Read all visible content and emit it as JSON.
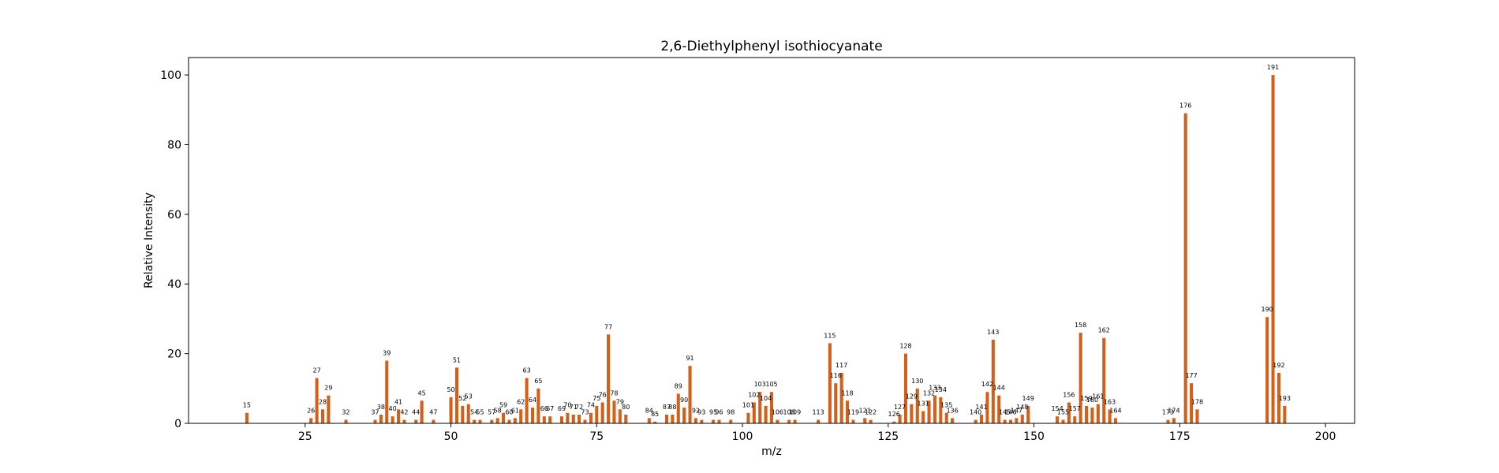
{
  "chart_data": {
    "type": "bar",
    "title": "2,6-Diethylphenyl isothiocyanate",
    "xlabel": "m/z",
    "ylabel": "Relative Intensity",
    "xlim": [
      5,
      205
    ],
    "ylim": [
      0,
      105
    ],
    "xticks": [
      25,
      50,
      75,
      100,
      125,
      150,
      175,
      200
    ],
    "yticks": [
      0,
      20,
      40,
      60,
      80,
      100
    ],
    "bar_color": "#d2601a",
    "grid": false,
    "x": [
      15,
      26,
      27,
      28,
      29,
      32,
      37,
      38,
      39,
      40,
      41,
      42,
      44,
      45,
      47,
      50,
      51,
      52,
      53,
      54,
      55,
      57,
      58,
      59,
      60,
      61,
      62,
      63,
      64,
      65,
      66,
      67,
      69,
      70,
      71,
      72,
      73,
      74,
      75,
      76,
      77,
      78,
      79,
      80,
      84,
      85,
      87,
      88,
      89,
      90,
      91,
      92,
      93,
      95,
      96,
      98,
      101,
      102,
      103,
      104,
      105,
      106,
      108,
      109,
      113,
      115,
      116,
      117,
      118,
      119,
      121,
      122,
      126,
      127,
      128,
      129,
      130,
      131,
      132,
      133,
      134,
      135,
      136,
      140,
      141,
      142,
      143,
      144,
      145,
      146,
      147,
      148,
      149,
      154,
      155,
      156,
      157,
      158,
      159,
      160,
      161,
      162,
      163,
      164,
      173,
      174,
      176,
      177,
      178,
      190,
      191,
      192,
      193
    ],
    "y": [
      3,
      1.5,
      13,
      4,
      8,
      1,
      1,
      2.5,
      18,
      2,
      4,
      1,
      1,
      6.5,
      1,
      7.5,
      16,
      5,
      5.5,
      1,
      1,
      1,
      1.5,
      3,
      1,
      1.5,
      4,
      13,
      4.5,
      10,
      2,
      2,
      2,
      3,
      2.5,
      2.5,
      1,
      3,
      5,
      6,
      25.5,
      6.5,
      4,
      2.5,
      1.5,
      0.5,
      2.5,
      2.5,
      8.5,
      4.5,
      16.5,
      1.5,
      1,
      1,
      1,
      1,
      3,
      6,
      9,
      5,
      9,
      1,
      1,
      1,
      1,
      23,
      11.5,
      14.5,
      6.5,
      1,
      1.5,
      1,
      0.5,
      2.5,
      20,
      5.5,
      10,
      3.5,
      6.5,
      8,
      7.5,
      3,
      1.5,
      1,
      2.5,
      9,
      24,
      8,
      1,
      1,
      1.5,
      2.5,
      5,
      2,
      1,
      6,
      2,
      26,
      5,
      4.5,
      5.5,
      24.5,
      4,
      1.5,
      1,
      1.5,
      89,
      11.5,
      4,
      30.5,
      100,
      14.5,
      5
    ],
    "labels": [
      "15",
      "26",
      "27",
      "28",
      "29",
      "32",
      "37",
      "38",
      "39",
      "40",
      "41",
      "42",
      "44",
      "45",
      "47",
      "50",
      "51",
      "52",
      "53",
      "54",
      "55",
      "57",
      "58",
      "59",
      "60",
      "61",
      "62",
      "63",
      "64",
      "65",
      "66",
      "67",
      "69",
      "70",
      "71",
      "72",
      "73",
      "74",
      "75",
      "76",
      "77",
      "78",
      "79",
      "80",
      "84",
      "85",
      "87",
      "88",
      "89",
      "90",
      "91",
      "92",
      "93",
      "95",
      "96",
      "98",
      "101",
      "102",
      "103",
      "104",
      "105",
      "106",
      "108",
      "109",
      "113",
      "115",
      "116",
      "117",
      "118",
      "119",
      "121",
      "122",
      "126",
      "127",
      "128",
      "129",
      "130",
      "131",
      "132",
      "133",
      "134",
      "135",
      "136",
      "140",
      "141",
      "142",
      "143",
      "144",
      "145",
      "146",
      "147",
      "148",
      "149",
      "154",
      "155",
      "156",
      "157",
      "158",
      "159",
      "160",
      "161",
      "162",
      "163",
      "164",
      "173",
      "174",
      "176",
      "177",
      "178",
      "190",
      "191",
      "192",
      "193"
    ]
  }
}
